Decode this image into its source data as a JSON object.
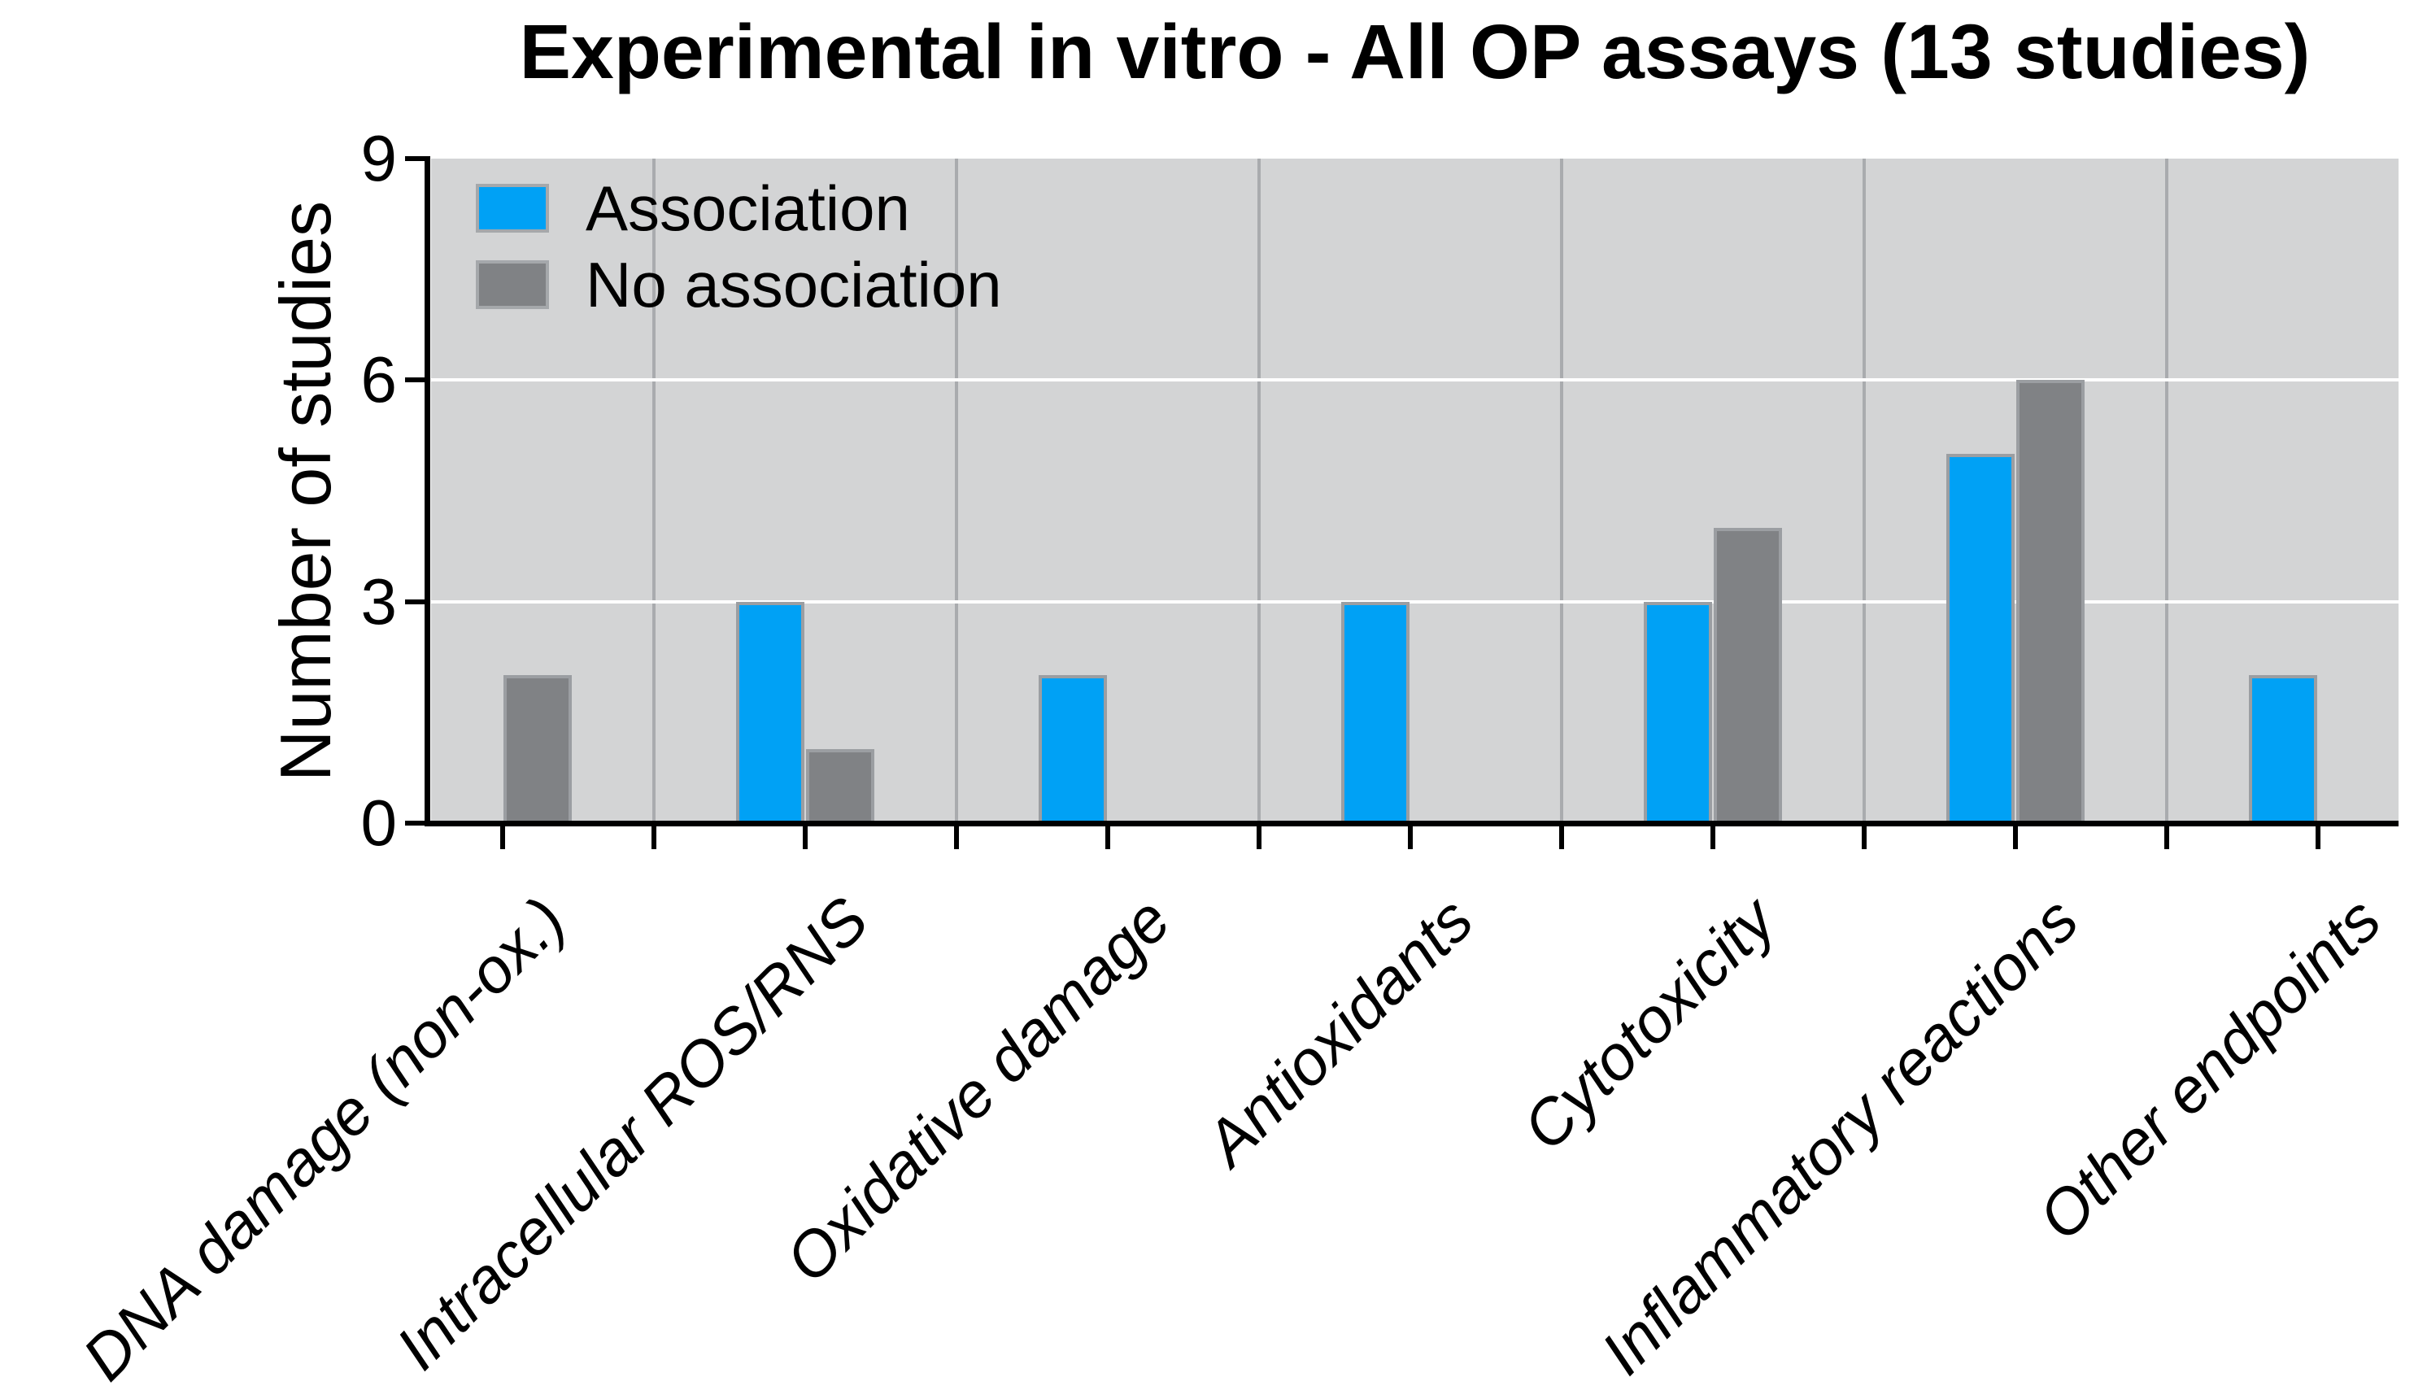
{
  "chart_data": {
    "type": "bar",
    "title": "Experimental in vitro - All OP assays (13 studies)",
    "ylabel": "Number of studies",
    "xlabel": "",
    "categories": [
      "DNA damage (non-ox.)",
      "Intracellular ROS/RNS",
      "Oxidative damage",
      "Antioxidants",
      "Cytotoxicity",
      "Inflammatory reactions",
      "Other endpoints"
    ],
    "series": [
      {
        "name": "Association",
        "values": [
          0,
          3,
          2,
          3,
          3,
          5,
          2
        ],
        "color": "#00A1F5"
      },
      {
        "name": "No association",
        "values": [
          2,
          1,
          0,
          0,
          4,
          6,
          0
        ],
        "color": "#808285"
      }
    ],
    "ylim": [
      0,
      9
    ],
    "yticks": [
      0,
      3,
      6,
      9
    ],
    "legend_position": "top-left-inside-plot",
    "grid": {
      "horizontal": "on",
      "vertical": "category-separators"
    },
    "colors": {
      "plot_background": "#D3D4D5",
      "grid_horizontal": "#FFFFFF",
      "grid_vertical": "#A9ABAE",
      "bar_border": "#9B9EA2",
      "legend_border": "#A5A8AB",
      "axis": "#000000",
      "text": "#000000"
    }
  }
}
